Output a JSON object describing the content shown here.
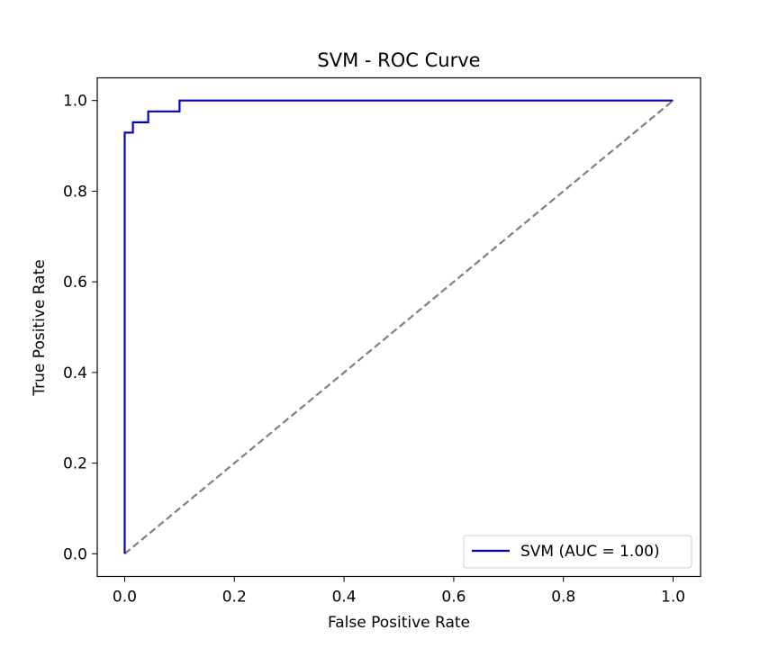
{
  "chart_data": {
    "type": "line",
    "title": "SVM - ROC Curve",
    "xlabel": "False Positive Rate",
    "ylabel": "True Positive Rate",
    "xlim": [
      -0.05,
      1.05
    ],
    "ylim": [
      -0.05,
      1.05
    ],
    "xticks": [
      "0.0",
      "0.2",
      "0.4",
      "0.6",
      "0.8",
      "1.0"
    ],
    "yticks": [
      "0.0",
      "0.2",
      "0.4",
      "0.6",
      "0.8",
      "1.0"
    ],
    "grid": false,
    "legend_position": "lower-right",
    "series": [
      {
        "name": "SVM (AUC = 1.00)",
        "color": "#0000cc",
        "style": "solid",
        "step": true,
        "x": [
          0.0,
          0.0,
          0.015,
          0.015,
          0.043,
          0.043,
          0.1,
          0.1,
          1.0
        ],
        "y": [
          0.0,
          0.929,
          0.929,
          0.952,
          0.952,
          0.976,
          0.976,
          1.0,
          1.0
        ]
      },
      {
        "name": "",
        "color": "#808080",
        "style": "dashed",
        "x": [
          0.0,
          1.0
        ],
        "y": [
          0.0,
          1.0
        ]
      }
    ]
  }
}
